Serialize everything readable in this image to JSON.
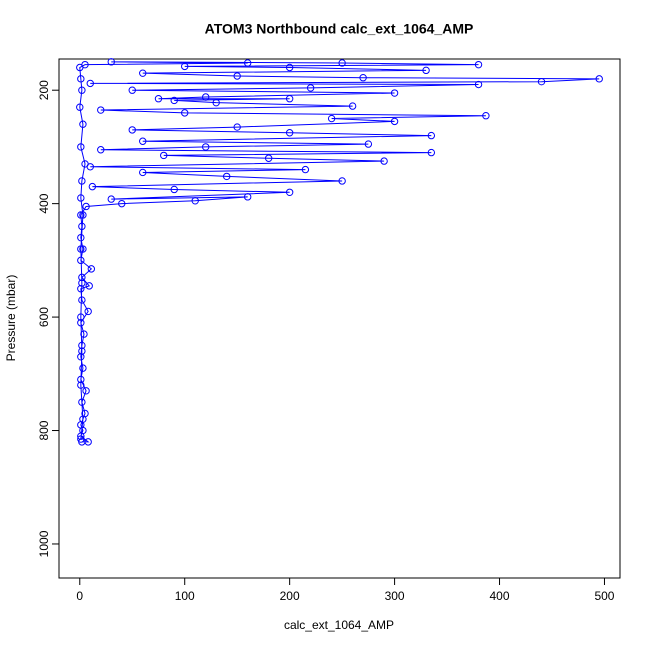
{
  "chart_data": {
    "type": "line",
    "title": "ATOM3 Northbound calc_ext_1064_AMP",
    "x_label": "calc_ext_1064_AMP",
    "y_label": "Pressure (mbar)",
    "xlim": [
      -19.8,
      514.8
    ],
    "xticks": [
      0,
      100,
      200,
      300,
      400,
      500
    ],
    "ylim": [
      1060,
      145
    ],
    "yticks": [
      200,
      400,
      600,
      800,
      1000
    ],
    "series": [
      {
        "color": "#0000ff",
        "x": [
          2,
          8,
          1,
          3,
          1,
          5,
          2,
          6,
          1,
          3,
          1,
          2,
          4,
          1,
          8,
          2,
          1,
          9,
          2,
          11,
          1,
          3,
          1,
          2,
          1,
          6,
          40,
          110,
          160,
          30,
          200,
          90,
          12,
          250,
          140,
          60,
          215,
          10,
          290,
          180,
          80,
          335,
          20,
          120,
          275,
          60,
          335,
          200,
          50,
          150,
          300,
          240,
          387,
          100,
          20,
          260,
          130,
          90,
          200,
          75,
          120,
          300,
          50,
          220,
          380,
          10,
          440,
          495,
          270,
          150,
          60,
          330,
          200,
          100,
          380,
          250,
          30,
          160,
          5,
          0,
          1,
          2,
          0,
          3,
          1,
          5,
          2,
          1,
          3,
          1,
          2,
          1,
          2,
          1,
          3,
          1
        ],
        "y": [
          820,
          820,
          810,
          800,
          790,
          770,
          750,
          730,
          710,
          690,
          670,
          650,
          630,
          610,
          590,
          570,
          550,
          545,
          530,
          515,
          500,
          480,
          460,
          440,
          420,
          405,
          400,
          395,
          388,
          392,
          380,
          375,
          370,
          360,
          352,
          345,
          340,
          335,
          325,
          320,
          315,
          310,
          305,
          300,
          295,
          290,
          280,
          275,
          270,
          265,
          255,
          250,
          245,
          240,
          235,
          228,
          222,
          218,
          215,
          215,
          212,
          205,
          200,
          196,
          190,
          188,
          185,
          180,
          178,
          175,
          170,
          165,
          160,
          158,
          155,
          152,
          150,
          152,
          155,
          160,
          180,
          200,
          230,
          260,
          300,
          330,
          360,
          390,
          420,
          480,
          540,
          600,
          660,
          720,
          780,
          815
        ]
      }
    ]
  }
}
